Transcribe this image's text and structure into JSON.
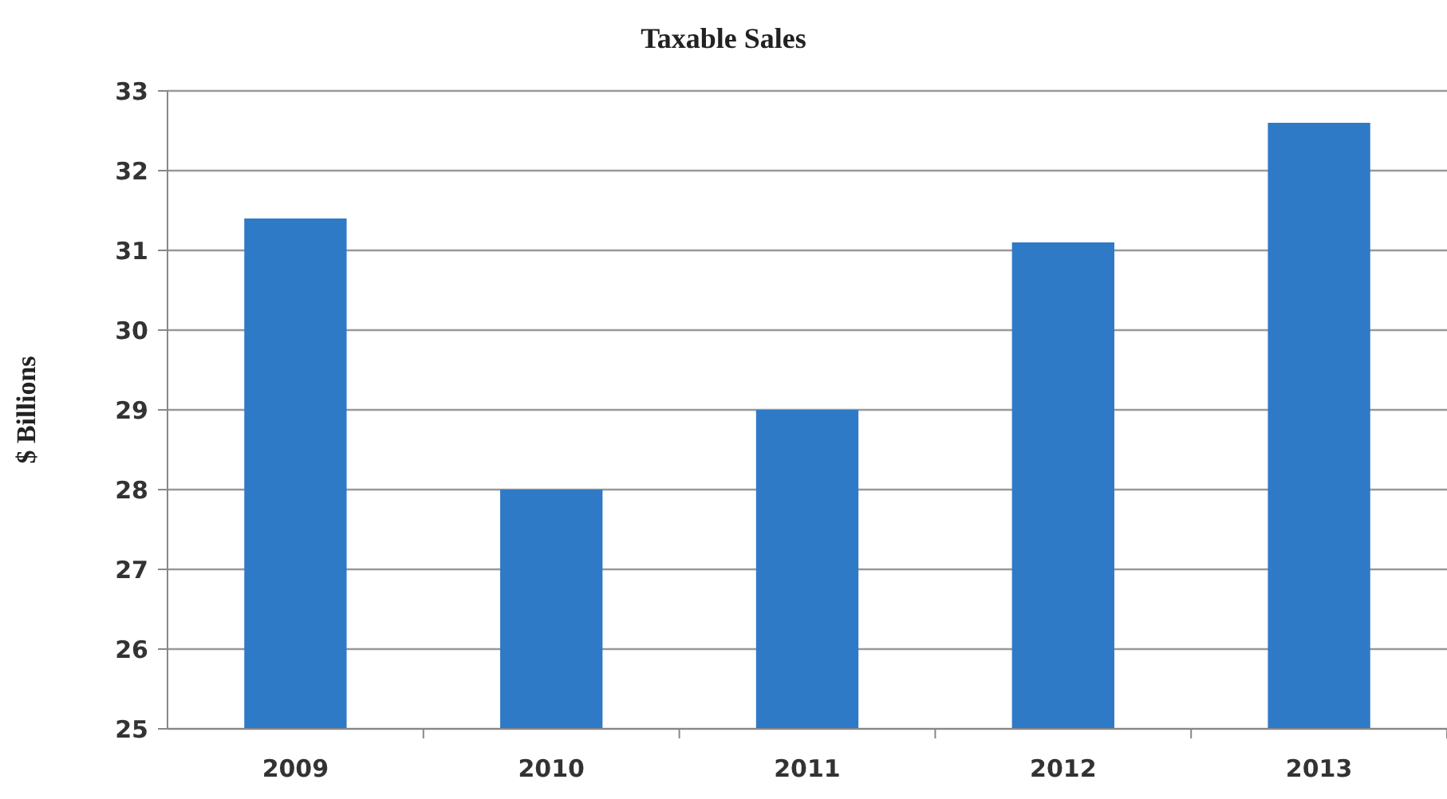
{
  "chart_data": {
    "type": "bar",
    "title": "Taxable Sales",
    "ylabel": "$ Billions",
    "categories": [
      "2009",
      "2010",
      "2011",
      "2012",
      "2013"
    ],
    "values": [
      31.4,
      28.0,
      29.0,
      31.1,
      32.6
    ],
    "color": "#2f7ac6",
    "ylim": [
      25,
      33
    ],
    "yticks": [
      25,
      26,
      27,
      28,
      29,
      30,
      31,
      32,
      33
    ],
    "grid": "y"
  }
}
